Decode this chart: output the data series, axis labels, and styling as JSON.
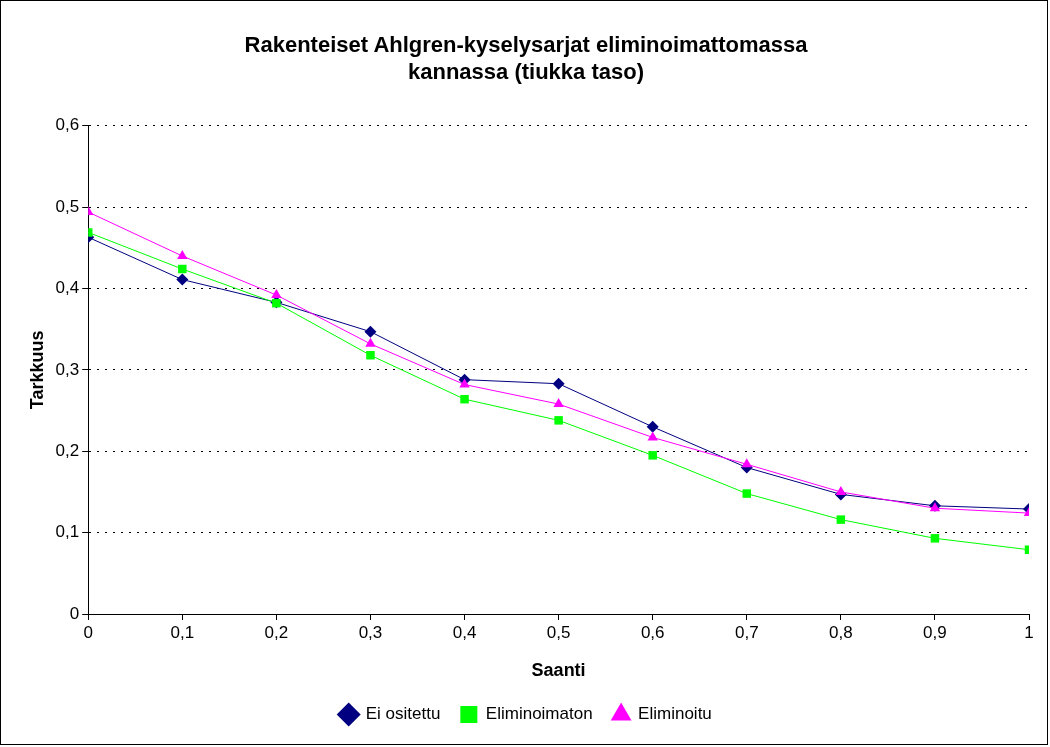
{
  "chart_data": {
    "type": "line",
    "title": "Rakenteiset Ahlgren-kyselysarjat eliminoimattomassa kannassa (tiukka taso)",
    "xlabel": "Saanti",
    "ylabel": "Tarkkuus",
    "x": [
      0,
      0.1,
      0.2,
      0.3,
      0.4,
      0.5,
      0.6,
      0.7,
      0.8,
      0.9,
      1
    ],
    "xlim": [
      0,
      1
    ],
    "xticks": [
      0,
      {
        "value": 0.1,
        "label": "0,1"
      },
      {
        "value": 0.2,
        "label": "0,2"
      },
      {
        "value": 0.3,
        "label": "0,3"
      },
      {
        "value": 0.4,
        "label": "0,4"
      },
      {
        "value": 0.5,
        "label": "0,5"
      },
      {
        "value": 0.6,
        "label": "0,6"
      },
      {
        "value": 0.7,
        "label": "0,7"
      },
      {
        "value": 0.8,
        "label": "0,8"
      },
      {
        "value": 0.9,
        "label": "0,9"
      },
      1
    ],
    "ylim": [
      0,
      0.6
    ],
    "yticks": [
      0,
      {
        "value": 0.1,
        "label": "0,1"
      },
      {
        "value": 0.2,
        "label": "0,2"
      },
      {
        "value": 0.3,
        "label": "0,3"
      },
      {
        "value": 0.4,
        "label": "0,4"
      },
      {
        "value": 0.5,
        "label": "0,5"
      },
      {
        "value": 0.6,
        "label": "0,6"
      }
    ],
    "grid": "y",
    "legend": "bottom",
    "line_style": "solid",
    "series": [
      {
        "name": "Ei ositettu",
        "color": "#000080",
        "marker": "diamond",
        "values": [
          0.463,
          0.411,
          0.383,
          0.347,
          0.288,
          0.283,
          0.23,
          0.18,
          0.147,
          0.133,
          0.129
        ]
      },
      {
        "name": "Eliminoimaton",
        "color": "#00ff00",
        "marker": "square",
        "values": [
          0.469,
          0.424,
          0.382,
          0.318,
          0.264,
          0.238,
          0.195,
          0.148,
          0.116,
          0.093,
          0.079
        ]
      },
      {
        "name": "Eliminoitu",
        "color": "#ff00ff",
        "marker": "triangle",
        "values": [
          0.494,
          0.44,
          0.392,
          0.332,
          0.282,
          0.258,
          0.217,
          0.184,
          0.15,
          0.13,
          0.124
        ]
      }
    ]
  }
}
